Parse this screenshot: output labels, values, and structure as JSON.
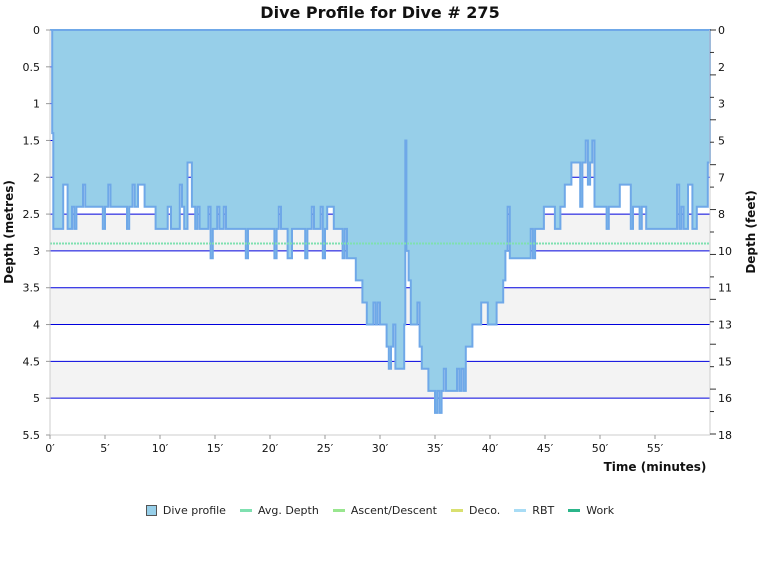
{
  "chart_data": {
    "type": "area",
    "title": "Dive Profile for Dive # 275",
    "xlabel": "Time (minutes)",
    "ylabel": "Depth (metres)",
    "ylabel_right": "Depth (feet)",
    "xlim": [
      0,
      60
    ],
    "ylim": [
      0,
      5.5
    ],
    "y_inverted": true,
    "x_ticks": [
      "0′",
      "5′",
      "10′",
      "15′",
      "20′",
      "25′",
      "30′",
      "35′",
      "40′",
      "45′",
      "50′",
      "55′"
    ],
    "y_ticks": [
      "0",
      "0.5",
      "1",
      "1.5",
      "2",
      "2.5",
      "3",
      "3.5",
      "4",
      "4.5",
      "5",
      "5.5"
    ],
    "y_right_ticks": [
      "0",
      "2",
      "3",
      "5",
      "7",
      "8",
      "10",
      "11",
      "13",
      "15",
      "16",
      "18"
    ],
    "grid": true,
    "avg_depth": 2.9,
    "colors": {
      "fill": "#97cfe9",
      "stroke": "#6fa8e8",
      "grid": "#0000dd",
      "band": "#f3f3f3",
      "avg": "#7fe0b0"
    },
    "legend_position": "bottom",
    "legend": [
      {
        "label": "Dive profile",
        "color": "#97cfe9",
        "kind": "box"
      },
      {
        "label": "Avg. Depth",
        "color": "#7fe0b0",
        "kind": "line"
      },
      {
        "label": "Ascent/Descent",
        "color": "#99e68f",
        "kind": "line"
      },
      {
        "label": "Deco.",
        "color": "#d9e070",
        "kind": "line"
      },
      {
        "label": "RBT",
        "color": "#a8dcf5",
        "kind": "line"
      },
      {
        "label": "Work",
        "color": "#2bb58a",
        "kind": "line"
      }
    ],
    "series": [
      {
        "time": [
          0,
          0.2,
          0.3,
          1.0,
          1.2,
          1.4,
          1.6,
          1.8,
          2.0,
          2.2,
          2.4,
          2.8,
          3.0,
          3.2,
          4.6,
          4.8,
          5.0,
          5.3,
          5.5,
          6.8,
          7.0,
          7.2,
          7.5,
          7.7,
          8.0,
          8.3,
          8.6,
          9.2,
          9.6,
          10.4,
          10.7,
          11.0,
          11.6,
          11.8,
          12.0,
          12.2,
          12.5,
          12.8,
          12.9,
          13.2,
          13.4,
          13.6,
          14.2,
          14.4,
          14.6,
          14.8,
          15.2,
          15.4,
          15.8,
          16.0,
          17.6,
          17.8,
          18.0,
          20.2,
          20.4,
          20.6,
          20.8,
          21.0,
          21.4,
          21.6,
          21.8,
          22.0,
          23.0,
          23.2,
          23.4,
          23.8,
          24.0,
          24.4,
          24.6,
          24.8,
          25.0,
          25.2,
          25.6,
          25.8,
          26.4,
          26.6,
          26.8,
          27.0,
          27.6,
          27.8,
          28.2,
          28.4,
          28.8,
          29.2,
          29.4,
          29.6,
          29.8,
          30.0,
          30.4,
          30.6,
          30.8,
          31.0,
          31.2,
          31.4,
          32.0,
          32.2,
          32.3,
          32.4,
          32.6,
          32.8,
          33.2,
          33.4,
          33.6,
          33.8,
          34.2,
          34.4,
          34.8,
          35.0,
          35.2,
          35.4,
          35.6,
          35.8,
          36.0,
          36.8,
          37.0,
          37.2,
          37.4,
          37.6,
          37.8,
          38.2,
          38.4,
          39.0,
          39.2,
          39.6,
          39.8,
          40.2,
          40.6,
          41.0,
          41.2,
          41.4,
          41.6,
          41.8,
          43.5,
          43.7,
          43.9,
          44.1,
          44.6,
          44.9,
          45.6,
          45.9,
          46.2,
          46.4,
          46.8,
          47.2,
          47.4,
          48.0,
          48.2,
          48.4,
          48.7,
          48.9,
          49.1,
          49.3,
          49.5,
          50.4,
          50.6,
          50.8,
          51.6,
          51.8,
          52.6,
          52.8,
          53.0,
          53.4,
          53.6,
          53.8,
          54.2,
          56.8,
          57.0,
          57.2,
          57.4,
          57.6,
          58.0,
          58.4,
          58.6,
          58.8,
          59.5,
          59.8,
          60.0
        ],
        "depth": [
          0,
          1.4,
          2.7,
          2.7,
          2.1,
          2.1,
          2.7,
          2.7,
          2.4,
          2.7,
          2.4,
          2.4,
          2.1,
          2.4,
          2.4,
          2.7,
          2.4,
          2.1,
          2.4,
          2.4,
          2.7,
          2.4,
          2.1,
          2.4,
          2.1,
          2.1,
          2.4,
          2.4,
          2.7,
          2.7,
          2.4,
          2.7,
          2.7,
          2.1,
          2.4,
          2.7,
          1.8,
          1.8,
          2.4,
          2.7,
          2.4,
          2.7,
          2.7,
          2.4,
          3.1,
          2.7,
          2.4,
          2.7,
          2.4,
          2.7,
          2.7,
          3.1,
          2.7,
          2.7,
          3.1,
          2.7,
          2.4,
          2.7,
          2.7,
          3.1,
          3.1,
          2.7,
          2.7,
          3.1,
          2.7,
          2.4,
          2.7,
          2.7,
          2.4,
          3.1,
          2.7,
          2.4,
          2.4,
          2.7,
          2.7,
          3.1,
          2.7,
          3.1,
          3.1,
          3.4,
          3.4,
          3.7,
          4.0,
          4.0,
          3.7,
          4.0,
          3.7,
          4.0,
          4.0,
          4.3,
          4.6,
          4.3,
          4.0,
          4.6,
          4.6,
          4.0,
          1.5,
          3.0,
          3.4,
          4.0,
          4.0,
          3.7,
          4.3,
          4.6,
          4.6,
          4.9,
          4.9,
          5.2,
          4.9,
          5.2,
          4.9,
          4.6,
          4.9,
          4.9,
          4.6,
          4.9,
          4.6,
          4.9,
          4.3,
          4.3,
          4.0,
          4.0,
          3.7,
          3.7,
          4.0,
          4.0,
          3.7,
          3.7,
          3.4,
          3.0,
          2.4,
          3.1,
          3.1,
          2.7,
          3.1,
          2.7,
          2.7,
          2.4,
          2.4,
          2.7,
          2.7,
          2.4,
          2.1,
          2.1,
          1.8,
          1.8,
          2.4,
          1.8,
          1.5,
          2.1,
          1.8,
          1.5,
          2.4,
          2.4,
          2.7,
          2.4,
          2.4,
          2.1,
          2.1,
          2.7,
          2.4,
          2.4,
          2.7,
          2.4,
          2.7,
          2.7,
          2.1,
          2.7,
          2.4,
          2.7,
          2.1,
          2.7,
          2.7,
          2.4,
          2.4,
          1.8,
          1.8
        ]
      }
    ]
  }
}
